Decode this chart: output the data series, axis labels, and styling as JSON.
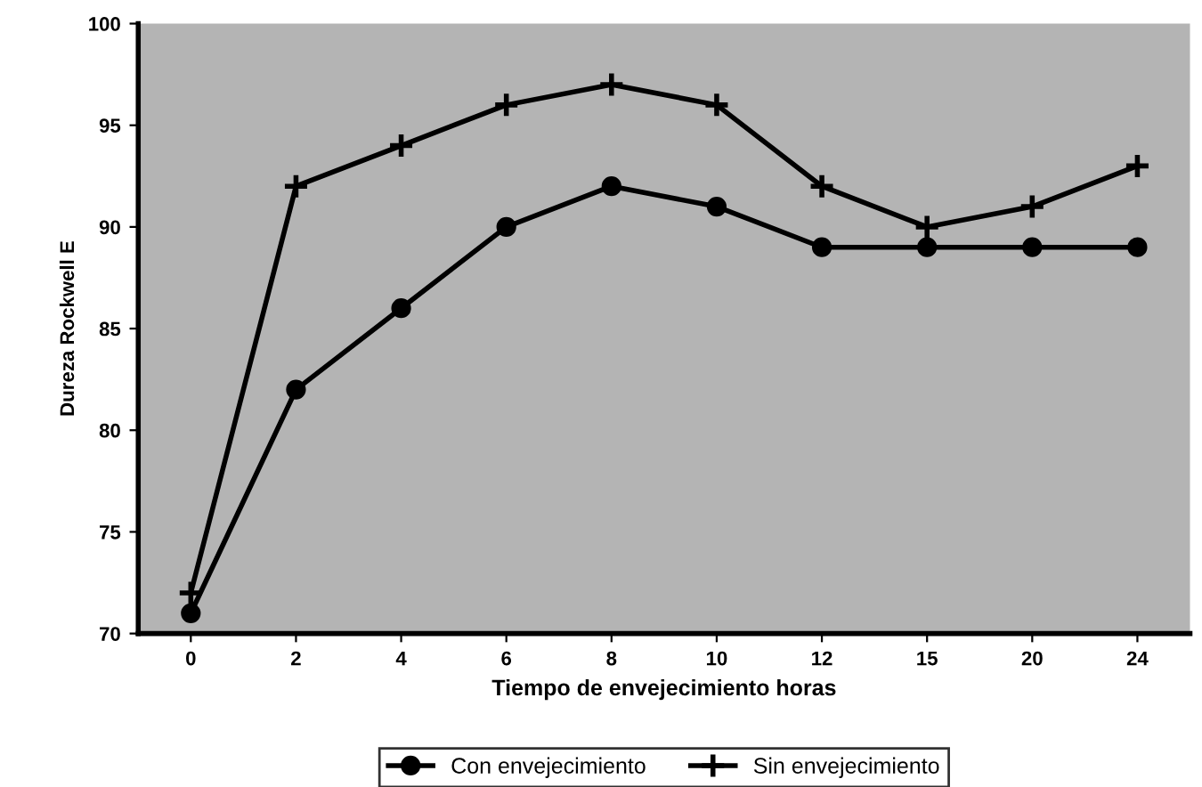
{
  "chart_data": {
    "type": "line",
    "xlabel": "Tiempo de envejecimiento horas",
    "ylabel": "Dureza Rockwell E",
    "categories": [
      "0",
      "2",
      "4",
      "6",
      "8",
      "10",
      "12",
      "15",
      "20",
      "24"
    ],
    "series": [
      {
        "name": "Con envejecimiento",
        "color": "#000000",
        "marker": "circle",
        "values": [
          71,
          82,
          86,
          90,
          92,
          91,
          89,
          89,
          89,
          89
        ]
      },
      {
        "name": "Sin envejecimiento",
        "color": "#000000",
        "marker": "cross",
        "values": [
          72,
          92,
          94,
          96,
          97,
          96,
          92,
          90,
          91,
          93
        ]
      }
    ],
    "ylim": [
      70,
      100
    ],
    "yticks": [
      70,
      75,
      80,
      85,
      90,
      95,
      100
    ],
    "grid": false,
    "legend": "bottom",
    "line_style": "solid"
  }
}
